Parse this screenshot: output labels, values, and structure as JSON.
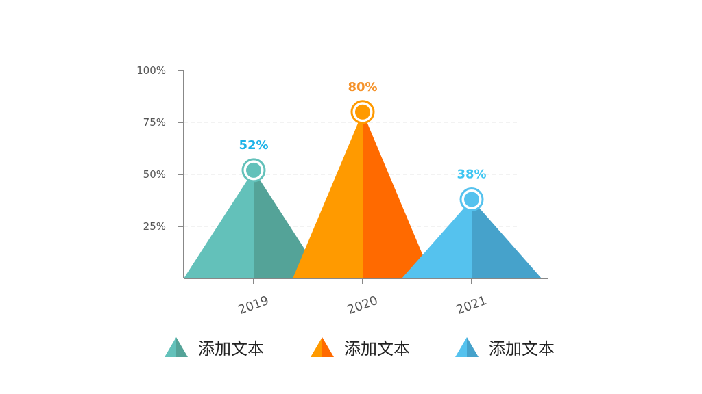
{
  "chart_data": {
    "type": "bar",
    "style": "triangle-pyramid",
    "categories": [
      "2019",
      "2020",
      "2021"
    ],
    "values": [
      52,
      80,
      38
    ],
    "value_labels": [
      "52%",
      "80%",
      "38%"
    ],
    "ylim": [
      0,
      100
    ],
    "yticks": [
      25,
      50,
      75,
      100
    ],
    "ytick_labels": [
      "25%",
      "50%",
      "75%",
      "100%"
    ],
    "grid": true,
    "colors": [
      {
        "light": "#63C1BA",
        "dark": "#54A398",
        "label": "#1CB2E8"
      },
      {
        "light": "#FF9A00",
        "dark": "#FF6A00",
        "label": "#F5922A"
      },
      {
        "light": "#55C2EE",
        "dark": "#46A2CB",
        "label": "#3FC6F2"
      }
    ]
  },
  "legend": {
    "items": [
      {
        "label": "添加文本"
      },
      {
        "label": "添加文本"
      },
      {
        "label": "添加文本"
      }
    ]
  }
}
